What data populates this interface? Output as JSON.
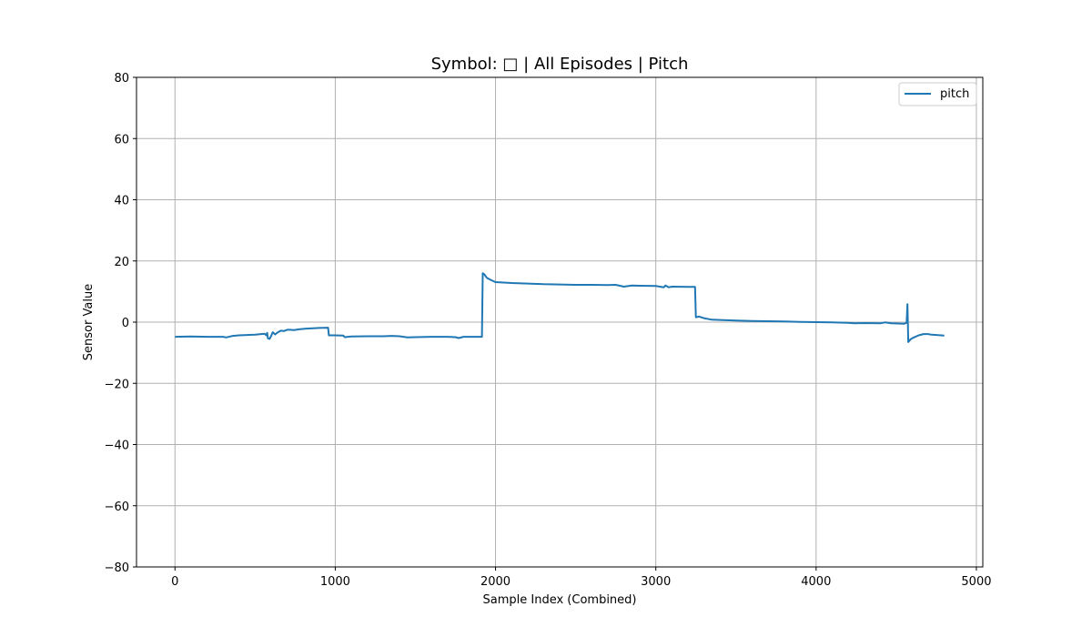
{
  "chart_data": {
    "type": "line",
    "title": "Symbol: □ | All Episodes | Pitch",
    "xlabel": "Sample Index (Combined)",
    "ylabel": "Sensor Value",
    "xlim": [
      -240,
      5040
    ],
    "ylim": [
      -80,
      80
    ],
    "xticks": [
      0,
      1000,
      2000,
      3000,
      4000,
      5000
    ],
    "xtick_labels": [
      "0",
      "1000",
      "2000",
      "3000",
      "4000",
      "5000"
    ],
    "yticks": [
      -80,
      -60,
      -40,
      -20,
      0,
      20,
      40,
      60,
      80
    ],
    "ytick_labels": [
      "−80",
      "−60",
      "−40",
      "−20",
      "0",
      "20",
      "40",
      "60",
      "80"
    ],
    "grid": true,
    "legend_position": "top-right",
    "colors": {
      "pitch": "#1f77b4",
      "grid": "#b0b0b0"
    },
    "series": [
      {
        "name": "pitch",
        "points": [
          [
            0,
            -4.8
          ],
          [
            100,
            -4.7
          ],
          [
            200,
            -4.8
          ],
          [
            300,
            -4.8
          ],
          [
            320,
            -5.0
          ],
          [
            360,
            -4.5
          ],
          [
            400,
            -4.3
          ],
          [
            500,
            -4.1
          ],
          [
            560,
            -3.8
          ],
          [
            570,
            -4.3
          ],
          [
            575,
            -3.5
          ],
          [
            580,
            -5.3
          ],
          [
            590,
            -5.5
          ],
          [
            600,
            -4.5
          ],
          [
            610,
            -3.3
          ],
          [
            625,
            -4.0
          ],
          [
            640,
            -3.4
          ],
          [
            660,
            -2.8
          ],
          [
            680,
            -2.9
          ],
          [
            700,
            -2.5
          ],
          [
            720,
            -2.5
          ],
          [
            740,
            -2.6
          ],
          [
            780,
            -2.3
          ],
          [
            820,
            -2.1
          ],
          [
            900,
            -1.9
          ],
          [
            955,
            -1.8
          ],
          [
            960,
            -4.3
          ],
          [
            1000,
            -4.3
          ],
          [
            1050,
            -4.4
          ],
          [
            1060,
            -4.9
          ],
          [
            1100,
            -4.7
          ],
          [
            1200,
            -4.6
          ],
          [
            1300,
            -4.6
          ],
          [
            1350,
            -4.5
          ],
          [
            1400,
            -4.6
          ],
          [
            1450,
            -5.0
          ],
          [
            1500,
            -4.9
          ],
          [
            1600,
            -4.8
          ],
          [
            1700,
            -4.8
          ],
          [
            1750,
            -4.9
          ],
          [
            1770,
            -5.2
          ],
          [
            1800,
            -4.8
          ],
          [
            1900,
            -4.8
          ],
          [
            1915,
            -4.8
          ],
          [
            1920,
            16.0
          ],
          [
            1930,
            15.6
          ],
          [
            1945,
            14.5
          ],
          [
            1970,
            13.8
          ],
          [
            2000,
            13.1
          ],
          [
            2100,
            12.8
          ],
          [
            2200,
            12.6
          ],
          [
            2300,
            12.4
          ],
          [
            2400,
            12.3
          ],
          [
            2500,
            12.2
          ],
          [
            2600,
            12.2
          ],
          [
            2700,
            12.1
          ],
          [
            2750,
            12.2
          ],
          [
            2800,
            11.6
          ],
          [
            2850,
            12.0
          ],
          [
            2900,
            11.9
          ],
          [
            3000,
            11.8
          ],
          [
            3050,
            11.4
          ],
          [
            3060,
            12.0
          ],
          [
            3080,
            11.4
          ],
          [
            3100,
            11.6
          ],
          [
            3200,
            11.5
          ],
          [
            3245,
            11.5
          ],
          [
            3250,
            1.6
          ],
          [
            3270,
            1.8
          ],
          [
            3300,
            1.3
          ],
          [
            3350,
            0.8
          ],
          [
            3400,
            0.7
          ],
          [
            3500,
            0.5
          ],
          [
            3600,
            0.4
          ],
          [
            3700,
            0.3
          ],
          [
            3800,
            0.2
          ],
          [
            3900,
            0.1
          ],
          [
            4000,
            0.0
          ],
          [
            4100,
            -0.1
          ],
          [
            4200,
            -0.2
          ],
          [
            4240,
            -0.4
          ],
          [
            4300,
            -0.3
          ],
          [
            4400,
            -0.4
          ],
          [
            4430,
            -0.1
          ],
          [
            4470,
            -0.4
          ],
          [
            4550,
            -0.5
          ],
          [
            4565,
            -0.2
          ],
          [
            4570,
            5.9
          ],
          [
            4575,
            -6.5
          ],
          [
            4590,
            -5.6
          ],
          [
            4610,
            -5.0
          ],
          [
            4640,
            -4.3
          ],
          [
            4670,
            -3.9
          ],
          [
            4700,
            -3.9
          ],
          [
            4720,
            -4.1
          ],
          [
            4750,
            -4.2
          ],
          [
            4780,
            -4.3
          ],
          [
            4800,
            -4.4
          ]
        ]
      }
    ]
  }
}
